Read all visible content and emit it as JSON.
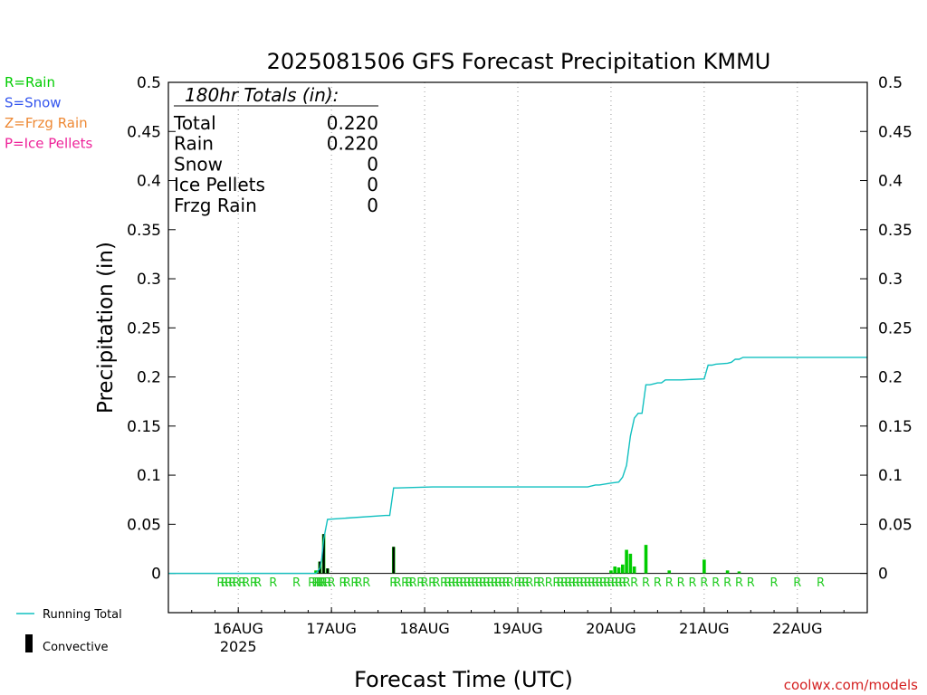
{
  "chart_data": {
    "type": "bar",
    "title": "2025081506 GFS Forecast Precipitation KMMU",
    "xlabel": "Forecast Time (UTC)",
    "ylabel": "Precipitation (in)",
    "ylim": [
      -0.04,
      0.5
    ],
    "yticks": [
      "0.5",
      "0.45",
      "0.4",
      "0.35",
      "0.3",
      "0.25",
      "0.2",
      "0.15",
      "0.1",
      "0.05",
      "0"
    ],
    "ytick_values": [
      0.5,
      0.45,
      0.4,
      0.35,
      0.3,
      0.25,
      0.2,
      0.15,
      0.1,
      0.05,
      0
    ],
    "xlim_hours": [
      -18,
      162
    ],
    "xticks": [
      {
        "label": "16AUG",
        "sub": "2025",
        "hour": 0
      },
      {
        "label": "17AUG",
        "sub": "",
        "hour": 24
      },
      {
        "label": "18AUG",
        "sub": "",
        "hour": 48
      },
      {
        "label": "19AUG",
        "sub": "",
        "hour": 72
      },
      {
        "label": "20AUG",
        "sub": "",
        "hour": 96
      },
      {
        "label": "21AUG",
        "sub": "",
        "hour": 120
      },
      {
        "label": "22AUG",
        "sub": "",
        "hour": 144
      }
    ],
    "grid": "vertical dotted",
    "legend": "left",
    "totals": {
      "header": "180hr Totals (in):",
      "rows": [
        {
          "label": "Total",
          "value": "0.220"
        },
        {
          "label": "Rain",
          "value": "0.220"
        },
        {
          "label": "Snow",
          "value": "0"
        },
        {
          "label": "Ice Pellets",
          "value": "0"
        },
        {
          "label": "Frzg Rain",
          "value": "0"
        }
      ]
    },
    "ptype_legend": [
      {
        "text": "R=Rain",
        "color": "#00cc00"
      },
      {
        "text": "S=Snow",
        "color": "#3355ee"
      },
      {
        "text": "Z=Frzg Rain",
        "color": "#ee8833"
      },
      {
        "text": "P=Ice Pellets",
        "color": "#ee2299"
      }
    ],
    "series_legend": [
      {
        "name": "Running Total",
        "color": "#11c0c0",
        "kind": "line"
      },
      {
        "name": "Convective",
        "color": "#000000",
        "kind": "bar"
      }
    ],
    "running_total": {
      "name": "Running Total",
      "hours": [
        -18,
        20,
        21,
        21.5,
        22,
        23,
        38,
        39,
        40,
        41,
        50,
        90,
        92,
        93,
        96,
        98,
        99,
        100,
        101,
        102,
        103,
        104,
        105,
        106,
        107,
        108,
        109,
        110,
        111,
        113,
        114,
        120,
        121,
        122,
        123,
        126,
        127,
        128,
        129,
        130,
        131,
        162
      ],
      "values": [
        0,
        0,
        0.005,
        0.015,
        0.035,
        0.055,
        0.059,
        0.059,
        0.087,
        0.087,
        0.088,
        0.088,
        0.09,
        0.09,
        0.092,
        0.093,
        0.098,
        0.11,
        0.14,
        0.158,
        0.163,
        0.163,
        0.192,
        0.192,
        0.193,
        0.194,
        0.194,
        0.197,
        0.197,
        0.197,
        0.197,
        0.198,
        0.212,
        0.212,
        0.213,
        0.214,
        0.215,
        0.218,
        0.218,
        0.22,
        0.22,
        0.22
      ]
    },
    "precip_bars": {
      "name": "Rain",
      "hours": [
        20,
        21,
        22,
        23,
        40,
        96,
        97,
        98,
        99,
        100,
        101,
        102,
        105,
        111,
        120,
        126,
        129
      ],
      "values": [
        0.003,
        0.012,
        0.04,
        0.005,
        0.027,
        0.003,
        0.007,
        0.006,
        0.009,
        0.024,
        0.02,
        0.007,
        0.029,
        0.003,
        0.014,
        0.003,
        0.002
      ]
    },
    "convective_bars": {
      "name": "Convective",
      "hours": [
        21,
        22,
        23,
        40
      ],
      "values": [
        0.012,
        0.04,
        0.005,
        0.027
      ]
    },
    "ptype_hours": [
      -4.5,
      -3.5,
      -2.5,
      -1.5,
      -0.5,
      1,
      2,
      4,
      5,
      9,
      15,
      19,
      20,
      20.5,
      21,
      21.5,
      22,
      23,
      24,
      27,
      28,
      30,
      31,
      33,
      40,
      41,
      43,
      44,
      45,
      47,
      48,
      50,
      51,
      53,
      54,
      55,
      56,
      57,
      58,
      59,
      60,
      61,
      62,
      63,
      64,
      65,
      66,
      67,
      68,
      69,
      70,
      72,
      73,
      74,
      75,
      77,
      78,
      80,
      82,
      83,
      84,
      85,
      86,
      87,
      88,
      89,
      90,
      91,
      92,
      93,
      94,
      95,
      96,
      97,
      98,
      99,
      100,
      102,
      105,
      108,
      111,
      114,
      117,
      120,
      123,
      126,
      129,
      132,
      138,
      144,
      150
    ],
    "ptype_symbol": "R",
    "credit": "coolwx.com/models"
  }
}
